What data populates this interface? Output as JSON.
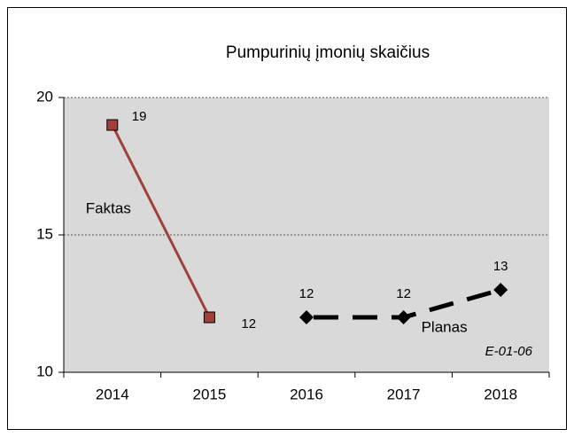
{
  "chart_data": {
    "type": "line",
    "title": "Pumpurinių įmonių skaičius",
    "categories": [
      "2014",
      "2015",
      "2016",
      "2017",
      "2018"
    ],
    "series": [
      {
        "name": "Faktas",
        "color": "#a0403c",
        "marker": "square",
        "dashed": false,
        "values": [
          19,
          12,
          null,
          null,
          null
        ]
      },
      {
        "name": "Planas",
        "color": "#000000",
        "marker": "diamond",
        "dashed": true,
        "values": [
          null,
          null,
          12,
          12,
          13
        ]
      }
    ],
    "ylim": [
      10,
      20
    ],
    "yticks": [
      10,
      15,
      20
    ],
    "grid": true,
    "annotation": "E-01-06"
  }
}
